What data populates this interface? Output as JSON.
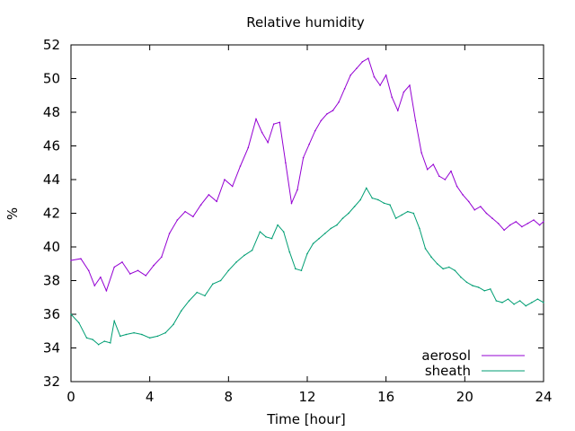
{
  "chart_data": {
    "type": "line",
    "title": "Relative humidity",
    "xlabel": "Time [hour]",
    "ylabel": "%",
    "xlim": [
      0,
      24
    ],
    "ylim": [
      32,
      52
    ],
    "xticks": [
      0,
      4,
      8,
      12,
      16,
      20,
      24
    ],
    "yticks": [
      32,
      34,
      36,
      38,
      40,
      42,
      44,
      46,
      48,
      50,
      52
    ],
    "grid": false,
    "legend_position": "bottom-right",
    "series": [
      {
        "name": "aerosol",
        "color": "#9400d3",
        "x": [
          0,
          0.5,
          0.9,
          1.2,
          1.5,
          1.8,
          2.2,
          2.6,
          3.0,
          3.4,
          3.8,
          4.2,
          4.6,
          5.0,
          5.4,
          5.8,
          6.2,
          6.6,
          7.0,
          7.4,
          7.8,
          8.2,
          8.6,
          9.0,
          9.4,
          9.7,
          10.0,
          10.3,
          10.6,
          10.9,
          11.2,
          11.5,
          11.8,
          12.1,
          12.4,
          12.7,
          13.0,
          13.3,
          13.6,
          13.9,
          14.2,
          14.5,
          14.8,
          15.1,
          15.4,
          15.7,
          16.0,
          16.3,
          16.6,
          16.9,
          17.2,
          17.5,
          17.8,
          18.1,
          18.4,
          18.7,
          19.0,
          19.3,
          19.6,
          19.9,
          20.2,
          20.5,
          20.8,
          21.1,
          21.4,
          21.7,
          22.0,
          22.3,
          22.6,
          22.9,
          23.2,
          23.5,
          23.8,
          24.0
        ],
        "y": [
          39.2,
          39.3,
          38.6,
          37.7,
          38.2,
          37.4,
          38.8,
          39.1,
          38.4,
          38.6,
          38.3,
          38.9,
          39.4,
          40.8,
          41.6,
          42.1,
          41.8,
          42.5,
          43.1,
          42.7,
          44.0,
          43.6,
          44.8,
          45.9,
          47.6,
          46.8,
          46.2,
          47.3,
          47.4,
          45.0,
          42.6,
          43.4,
          45.3,
          46.1,
          46.9,
          47.5,
          47.9,
          48.1,
          48.6,
          49.4,
          50.2,
          50.6,
          51.0,
          51.2,
          50.1,
          49.6,
          50.2,
          48.9,
          48.1,
          49.2,
          49.6,
          47.5,
          45.6,
          44.6,
          44.9,
          44.2,
          44.0,
          44.5,
          43.6,
          43.1,
          42.7,
          42.2,
          42.4,
          42.0,
          41.7,
          41.4,
          41.0,
          41.3,
          41.5,
          41.2,
          41.4,
          41.6,
          41.3,
          41.5
        ]
      },
      {
        "name": "sheath",
        "color": "#009e73",
        "x": [
          0,
          0.4,
          0.8,
          1.1,
          1.4,
          1.7,
          2.0,
          2.2,
          2.5,
          2.8,
          3.2,
          3.6,
          4.0,
          4.4,
          4.8,
          5.2,
          5.6,
          6.0,
          6.4,
          6.8,
          7.2,
          7.6,
          8.0,
          8.4,
          8.8,
          9.2,
          9.6,
          9.9,
          10.2,
          10.5,
          10.8,
          11.1,
          11.4,
          11.7,
          12.0,
          12.3,
          12.6,
          12.9,
          13.2,
          13.5,
          13.8,
          14.1,
          14.4,
          14.7,
          15.0,
          15.3,
          15.6,
          15.9,
          16.2,
          16.5,
          16.8,
          17.1,
          17.4,
          17.7,
          18.0,
          18.3,
          18.6,
          18.9,
          19.2,
          19.5,
          19.8,
          20.1,
          20.4,
          20.7,
          21.0,
          21.3,
          21.6,
          21.9,
          22.2,
          22.5,
          22.8,
          23.1,
          23.4,
          23.7,
          24.0
        ],
        "y": [
          36.0,
          35.5,
          34.6,
          34.5,
          34.2,
          34.4,
          34.3,
          35.6,
          34.7,
          34.8,
          34.9,
          34.8,
          34.6,
          34.7,
          34.9,
          35.4,
          36.2,
          36.8,
          37.3,
          37.1,
          37.8,
          38.0,
          38.6,
          39.1,
          39.5,
          39.8,
          40.9,
          40.6,
          40.5,
          41.3,
          40.9,
          39.7,
          38.7,
          38.6,
          39.6,
          40.2,
          40.5,
          40.8,
          41.1,
          41.3,
          41.7,
          42.0,
          42.4,
          42.8,
          43.5,
          42.9,
          42.8,
          42.6,
          42.5,
          41.7,
          41.9,
          42.1,
          42.0,
          41.1,
          39.9,
          39.4,
          39.0,
          38.7,
          38.8,
          38.6,
          38.2,
          37.9,
          37.7,
          37.6,
          37.4,
          37.5,
          36.8,
          36.7,
          36.9,
          36.6,
          36.8,
          36.5,
          36.7,
          36.9,
          36.7
        ]
      }
    ]
  }
}
